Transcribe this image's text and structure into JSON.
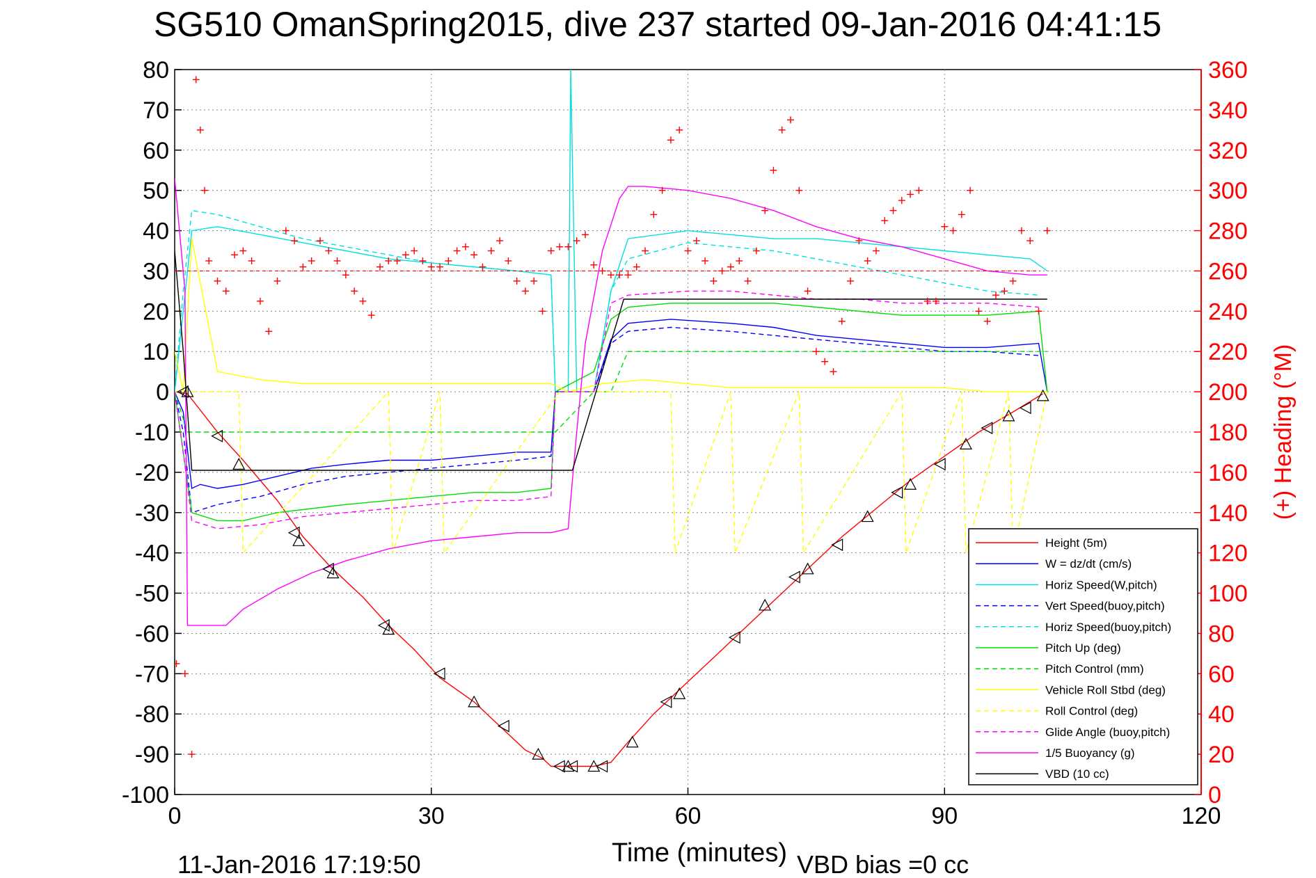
{
  "chart_data": {
    "type": "line",
    "title": "SG510 OmanSpring2015, dive 237 started 09-Jan-2016 04:41:15",
    "xlabel": "Time (minutes)",
    "ylabel_right": "(+) Heading (°M)",
    "xlim": [
      0,
      120
    ],
    "ylim": [
      -100,
      80
    ],
    "ylim_right": [
      0,
      360
    ],
    "x_ticks": [
      "0",
      "30",
      "60",
      "90",
      "120"
    ],
    "y_ticks": [
      "80",
      "70",
      "60",
      "50",
      "40",
      "30",
      "20",
      "10",
      "0",
      "-10",
      "-20",
      "-30",
      "-40",
      "-50",
      "-60",
      "-70",
      "-80",
      "-90",
      "-100"
    ],
    "y_ticks_right": [
      "360",
      "340",
      "320",
      "300",
      "280",
      "260",
      "240",
      "220",
      "200",
      "180",
      "160",
      "140",
      "120",
      "100",
      "80",
      "60",
      "40",
      "20",
      "0"
    ],
    "grid": true,
    "legend_position": "bottom-right",
    "footer_left": "11-Jan-2016 17:19:50",
    "footer_right": "VBD bias =0 cc",
    "series": [
      {
        "name": "Height (5m)",
        "color": "#ff0000",
        "style": "solid",
        "x": [
          0,
          1.5,
          5,
          8,
          12,
          15,
          18,
          22,
          25,
          28,
          31,
          35,
          38,
          41,
          43,
          44,
          46,
          49,
          51,
          53,
          56,
          60,
          63,
          66,
          70,
          74,
          78,
          82,
          86,
          90,
          94,
          98,
          101.5
        ],
        "y": [
          0,
          -0.5,
          -10,
          -17,
          -27,
          -36,
          -43,
          -51,
          -58,
          -64,
          -71,
          -77,
          -83,
          -89,
          -91,
          -93,
          -93,
          -93,
          -92,
          -87,
          -80,
          -72,
          -66,
          -60,
          -52,
          -44,
          -36,
          -29,
          -22,
          -16,
          -10,
          -5,
          -0.5
        ]
      },
      {
        "name": "W = dz/dt (cm/s)",
        "color": "#0000ff",
        "style": "solid",
        "x": [
          0,
          1,
          2,
          3,
          5,
          8,
          12,
          16,
          20,
          25,
          30,
          35,
          40,
          44,
          44.5,
          47,
          49,
          51,
          53,
          58,
          65,
          70,
          75,
          80,
          85,
          90,
          95,
          101,
          102
        ],
        "y": [
          0,
          -5,
          -24,
          -23,
          -24,
          -23,
          -21,
          -19,
          -18,
          -17,
          -17,
          -16,
          -15,
          -15,
          0,
          0,
          0,
          13,
          17,
          18,
          17,
          16,
          14,
          13,
          12,
          11,
          11,
          12,
          0
        ]
      },
      {
        "name": "Horiz Speed(W,pitch)",
        "color": "#00e0e0",
        "style": "solid",
        "x": [
          0,
          1,
          2,
          5,
          10,
          15,
          20,
          25,
          30,
          35,
          40,
          44,
          44.5,
          46,
          46.3,
          47,
          49,
          51,
          53,
          60,
          65,
          70,
          75,
          80,
          85,
          90,
          95,
          100,
          102
        ],
        "y": [
          0,
          20,
          40,
          41,
          39,
          37,
          35,
          33,
          32,
          31,
          30,
          29,
          0,
          0,
          80,
          0,
          0,
          25,
          38,
          40,
          39,
          38,
          38,
          37,
          36,
          35,
          34,
          33,
          30
        ]
      },
      {
        "name": "Vert Speed(buoy,pitch)",
        "color": "#0000ff",
        "style": "dashed",
        "x": [
          0,
          1,
          2,
          5,
          10,
          15,
          20,
          25,
          30,
          35,
          40,
          44,
          44.5,
          49,
          51,
          53,
          58,
          65,
          70,
          75,
          80,
          85,
          90,
          95,
          101
        ],
        "y": [
          0,
          -10,
          -30,
          -28,
          -26,
          -23,
          -21,
          -20,
          -19,
          -18,
          -17,
          -16,
          0,
          0,
          12,
          15,
          16,
          15,
          14,
          13,
          12,
          11,
          10,
          10,
          9
        ]
      },
      {
        "name": "Horiz Speed(buoy,pitch)",
        "color": "#00e0e0",
        "style": "dashed",
        "x": [
          0,
          1,
          2,
          5,
          10,
          15,
          20,
          25,
          30,
          35,
          40,
          44,
          44.5,
          49,
          51,
          53,
          60,
          65,
          70,
          75,
          80,
          85,
          90,
          95,
          101
        ],
        "y": [
          0,
          25,
          45,
          44,
          41,
          38,
          36,
          34,
          32,
          31,
          30,
          29,
          0,
          0,
          25,
          33,
          37,
          36,
          35,
          33,
          31,
          29,
          27,
          25,
          24
        ]
      },
      {
        "name": "Pitch Up (deg)",
        "color": "#00dd00",
        "style": "solid",
        "x": [
          0,
          1,
          2,
          5,
          8,
          12,
          16,
          20,
          25,
          30,
          35,
          40,
          44,
          44.5,
          49,
          51,
          53,
          58,
          65,
          70,
          75,
          80,
          85,
          90,
          95,
          101,
          102
        ],
        "y": [
          0,
          -15,
          -30,
          -32,
          -32,
          -30,
          -29,
          -28,
          -27,
          -26,
          -25,
          -25,
          -24,
          0,
          5,
          18,
          21,
          22,
          22,
          22,
          21,
          20,
          19,
          19,
          19,
          20,
          0
        ]
      },
      {
        "name": "Pitch Control (mm)",
        "color": "#00dd00",
        "style": "dashed",
        "x": [
          0,
          1.5,
          2,
          44,
          44.5,
          49,
          51,
          53,
          102
        ],
        "y": [
          0,
          -10,
          -10,
          -10,
          -10,
          0,
          0,
          10,
          10
        ]
      },
      {
        "name": "Vehicle Roll Stbd (deg)",
        "color": "#ffff00",
        "style": "solid",
        "x": [
          0,
          1,
          2,
          5,
          10,
          15,
          20,
          25,
          30,
          35,
          40,
          44,
          46,
          50,
          55,
          60,
          65,
          70,
          75,
          80,
          85,
          90,
          95,
          100,
          102
        ],
        "y": [
          10,
          0,
          38,
          5,
          3,
          2,
          2,
          2,
          2,
          2,
          2,
          2,
          0,
          2,
          3,
          2,
          1,
          1,
          1,
          1,
          1,
          1,
          0,
          0,
          0
        ]
      },
      {
        "name": "Roll Control (deg)",
        "color": "#ffff00",
        "style": "dashed",
        "x": [
          0,
          2,
          5,
          7.5,
          8,
          25,
          25.5,
          31,
          31.5,
          45,
          58,
          58.5,
          65,
          65.5,
          73,
          73.5,
          85,
          85.5,
          92,
          92.5,
          97.5,
          98,
          102
        ],
        "y": [
          0,
          0,
          0,
          0,
          -40,
          0,
          -40,
          0,
          -40,
          0,
          0,
          -40,
          0,
          -40,
          0,
          -40,
          0,
          -40,
          0,
          -40,
          0,
          -40,
          0
        ]
      },
      {
        "name": "Glide Angle (buoy,pitch)",
        "color": "#ff00ff",
        "style": "dashed",
        "x": [
          0,
          1,
          2,
          5,
          10,
          15,
          20,
          25,
          30,
          35,
          40,
          44,
          44.5,
          49,
          51,
          53,
          60,
          65,
          70,
          75,
          80,
          85,
          90,
          95,
          101
        ],
        "y": [
          0,
          -15,
          -32,
          -34,
          -33,
          -31,
          -30,
          -29,
          -28,
          -27,
          -27,
          -26,
          0,
          0,
          22,
          24,
          25,
          25,
          24,
          23,
          23,
          22,
          22,
          22,
          21
        ]
      },
      {
        "name": "1/5 Buoyancy (g)",
        "color": "#ff00ff",
        "style": "solid",
        "x": [
          0,
          1.2,
          1.5,
          2,
          6,
          8,
          12,
          16,
          20,
          25,
          30,
          35,
          40,
          44,
          46,
          47,
          48,
          50,
          52,
          53,
          55,
          60,
          65,
          70,
          75,
          80,
          85,
          90,
          95,
          100,
          102
        ],
        "y": [
          53,
          25,
          -58,
          -58,
          -58,
          -54,
          -49,
          -45,
          -42,
          -39,
          -37,
          -36,
          -35,
          -35,
          -34,
          -10,
          12,
          35,
          48,
          51,
          51,
          50,
          48,
          45,
          41,
          38,
          36,
          33,
          30,
          29,
          29
        ]
      },
      {
        "name": "VBD (10 cc)",
        "color": "#000000",
        "style": "solid",
        "x": [
          0,
          1,
          2,
          46.5,
          52.5,
          102
        ],
        "y": [
          35,
          10,
          -19.5,
          -19.5,
          23,
          23
        ]
      }
    ],
    "heading_series": {
      "name": "(+) Heading",
      "color": "#ff0000",
      "reference_deg": 260,
      "x": [
        0.2,
        1.2,
        2,
        2.5,
        3,
        3.5,
        4,
        5,
        6,
        7,
        8,
        9,
        10,
        11,
        12,
        13,
        14,
        15,
        16,
        17,
        18,
        19,
        20,
        21,
        22,
        23,
        24,
        25,
        26,
        27,
        28,
        29,
        30,
        31,
        32,
        33,
        34,
        35,
        36,
        37,
        38,
        39,
        40,
        41,
        42,
        43,
        44,
        45,
        46,
        47,
        48,
        49,
        50,
        51,
        52,
        53,
        54,
        55,
        56,
        57,
        58,
        59,
        60,
        61,
        62,
        63,
        64,
        65,
        66,
        67,
        68,
        69,
        70,
        71,
        72,
        73,
        74,
        75,
        76,
        77,
        78,
        79,
        80,
        81,
        82,
        83,
        84,
        85,
        86,
        87,
        88,
        89,
        90,
        91,
        92,
        93,
        94,
        95,
        96,
        97,
        98,
        99,
        100,
        101,
        102
      ],
      "y": [
        65,
        60,
        20,
        355,
        330,
        300,
        265,
        255,
        250,
        268,
        270,
        265,
        245,
        230,
        255,
        280,
        275,
        262,
        265,
        275,
        270,
        265,
        258,
        250,
        245,
        238,
        262,
        265,
        265,
        268,
        270,
        265,
        262,
        262,
        265,
        270,
        272,
        268,
        262,
        270,
        275,
        265,
        255,
        250,
        255,
        240,
        270,
        272,
        272,
        275,
        278,
        263,
        260,
        258,
        258,
        258,
        262,
        270,
        288,
        300,
        325,
        330,
        270,
        275,
        265,
        255,
        260,
        262,
        265,
        255,
        270,
        290,
        310,
        330,
        335,
        300,
        250,
        220,
        215,
        210,
        235,
        255,
        275,
        265,
        270,
        285,
        290,
        295,
        298,
        300,
        245,
        245,
        282,
        280,
        288,
        300,
        240,
        235,
        248,
        250,
        255,
        280,
        275,
        240,
        280
      ]
    },
    "markers": {
      "x": [
        1,
        1.5,
        5,
        7.5,
        14,
        14.5,
        18,
        18.5,
        24.5,
        25,
        31,
        35,
        38.5,
        42.5,
        45,
        46,
        46.5,
        49,
        50,
        53.5,
        57.5,
        59,
        65.5,
        69,
        72.5,
        74,
        77.5,
        81,
        84.5,
        86,
        89.5,
        92.5,
        95,
        97.5,
        99.5,
        101.5
      ],
      "y": [
        0,
        0,
        -11,
        -18,
        -35,
        -37,
        -44,
        -45,
        -58,
        -59,
        -70,
        -77,
        -83,
        -90,
        -93,
        -93,
        -93,
        -93,
        -93,
        -87,
        -77,
        -75,
        -61,
        -53,
        -46,
        -44,
        -38,
        -31,
        -25,
        -23,
        -18,
        -13,
        -9,
        -6,
        -4,
        -1
      ]
    }
  }
}
